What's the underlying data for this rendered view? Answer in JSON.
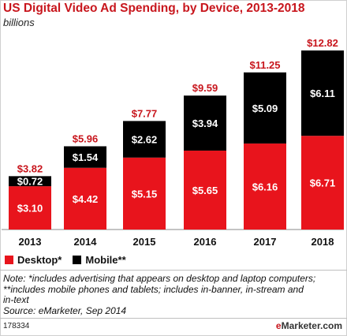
{
  "chart_data": {
    "type": "bar",
    "stacked": true,
    "title": "US Digital Video Ad Spending, by Device, 2013-2018",
    "subtitle": "billions",
    "categories": [
      "2013",
      "2014",
      "2015",
      "2016",
      "2017",
      "2018"
    ],
    "series": [
      {
        "name": "Desktop*",
        "color": "#e8141c",
        "values": [
          3.1,
          4.42,
          5.15,
          5.65,
          6.16,
          6.71
        ],
        "labels": [
          "$3.10",
          "$4.42",
          "$5.15",
          "$5.65",
          "$6.16",
          "$6.71"
        ]
      },
      {
        "name": "Mobile**",
        "color": "#000000",
        "values": [
          0.72,
          1.54,
          2.62,
          3.94,
          5.09,
          6.11
        ],
        "labels": [
          "$0.72",
          "$1.54",
          "$2.62",
          "$3.94",
          "$5.09",
          "$6.11"
        ]
      }
    ],
    "totals": [
      3.82,
      5.96,
      7.77,
      9.59,
      11.25,
      12.82
    ],
    "total_labels": [
      "$3.82",
      "$5.96",
      "$7.77",
      "$9.59",
      "$11.25",
      "$12.82"
    ],
    "ylim": [
      0,
      12.82
    ],
    "legend": "bottom-left",
    "grid": false
  },
  "legend": {
    "desktop": "Desktop*",
    "mobile": "Mobile**"
  },
  "note": {
    "line1": "Note: *includes advertising that appears on desktop and laptop computers;",
    "line2": "**includes mobile phones and tablets; includes in-banner, in-stream and",
    "line3": "in-text",
    "source": "Source: eMarketer, Sep 2014"
  },
  "footer": {
    "id": "178334",
    "brand_e": "e",
    "brand_rest": "Marketer",
    "brand_suffix": ".com"
  },
  "colors": {
    "accent": "#c8161d",
    "desktop": "#e8141c",
    "mobile": "#000000"
  }
}
